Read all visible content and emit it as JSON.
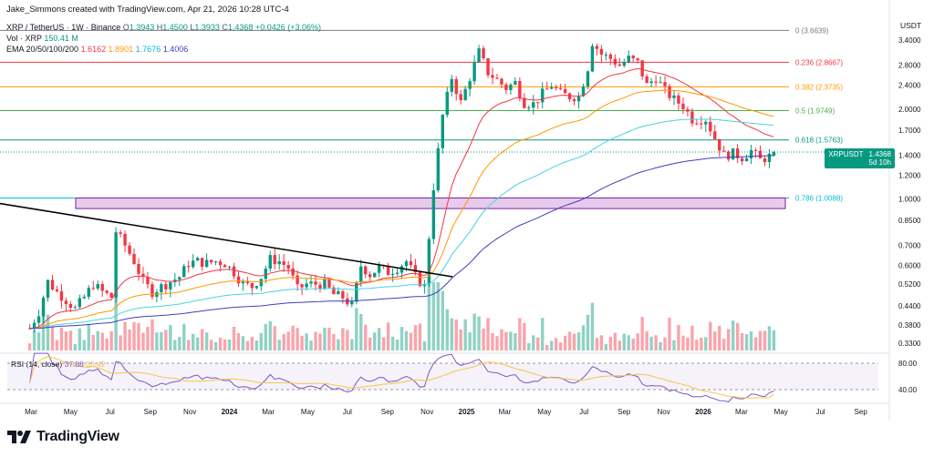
{
  "header": {
    "credit": "Jake_Simmons created with TradingView.com, Apr 21, 2026 10:28 UTC-4",
    "symbol_line": "XRP / TetherUS · 1W · Binance",
    "ohlc": {
      "o_label": "O",
      "o": "1.3943",
      "h_label": "H",
      "h": "1.4500",
      "l_label": "L",
      "l": "1.3933",
      "c_label": "C",
      "c": "1.4368",
      "change": "+0.0426 (+3.06%)"
    },
    "vol_label": "Vol · XRP",
    "vol_value": "150.41 M",
    "ema_label": "EMA 20/50/100/200",
    "ema_values": [
      "1.6162",
      "1.8901",
      "1.7676",
      "1.4006"
    ]
  },
  "price_badge": {
    "symbol": "XRPUSDT",
    "price": "1.4368",
    "timer": "5d 10h"
  },
  "rsi_header": {
    "label": "RSI (14, close)",
    "value": "37.88",
    "ma": "33.42"
  },
  "brand": {
    "name": "TradingView"
  },
  "colors": {
    "up": "#089981",
    "down": "#f23645",
    "ema20": "#f23645",
    "ema50": "#ff9800",
    "ema100": "#4dd0e1",
    "ema200": "#3f3fbf",
    "fib_0": "#787b86",
    "fib_236": "#f23645",
    "fib_382": "#ff9800",
    "fib_5": "#4caf50",
    "fib_618": "#089981",
    "fib_786": "#00bcd4",
    "zone_fill": "#e1bee7",
    "zone_stroke": "#7b1fa2",
    "trendline": "#000000",
    "rsi_line": "#7e57c2",
    "rsi_ma": "#f7c548"
  },
  "chart_data": {
    "type": "candlestick",
    "symbol": "XRP / TetherUS",
    "interval": "1W",
    "exchange": "Binance",
    "y_axis": {
      "unit": "USDT",
      "scale": "log",
      "ticks": [
        "3.4000",
        "2.8000",
        "2.4000",
        "2.0000",
        "1.7000",
        "1.4000",
        "1.2000",
        "1.0000",
        "0.8500",
        "0.7000",
        "0.6000",
        "0.5200",
        "0.4400",
        "0.3800",
        "0.3300"
      ],
      "range": [
        0.3,
        3.9
      ]
    },
    "x_axis": {
      "ticks": [
        "Mar",
        "May",
        "Jul",
        "Sep",
        "Nov",
        "2024",
        "Mar",
        "May",
        "Jul",
        "Sep",
        "Nov",
        "2025",
        "Mar",
        "May",
        "Jul",
        "Sep",
        "Nov",
        "2026",
        "Mar",
        "May",
        "Jul",
        "Sep"
      ],
      "tick_dates": [
        "2023-03-01",
        "2023-05-01",
        "2023-07-01",
        "2023-09-01",
        "2023-11-01",
        "2024-01-01",
        "2024-03-01",
        "2024-05-01",
        "2024-07-01",
        "2024-09-01",
        "2024-11-01",
        "2025-01-01",
        "2025-03-01",
        "2025-05-01",
        "2025-07-01",
        "2025-09-01",
        "2025-11-01",
        "2026-01-01",
        "2026-03-01",
        "2026-05-01",
        "2026-07-01",
        "2026-09-01"
      ]
    },
    "closes": [
      [
        "2023-02-27",
        0.37
      ],
      [
        "2023-03-13",
        0.42
      ],
      [
        "2023-03-27",
        0.53
      ],
      [
        "2023-04-10",
        0.49
      ],
      [
        "2023-04-24",
        0.46
      ],
      [
        "2023-05-08",
        0.43
      ],
      [
        "2023-05-22",
        0.47
      ],
      [
        "2023-06-05",
        0.52
      ],
      [
        "2023-06-19",
        0.49
      ],
      [
        "2023-07-03",
        0.47
      ],
      [
        "2023-07-10",
        0.78
      ],
      [
        "2023-07-24",
        0.7
      ],
      [
        "2023-08-07",
        0.62
      ],
      [
        "2023-08-21",
        0.53
      ],
      [
        "2023-09-04",
        0.49
      ],
      [
        "2023-09-18",
        0.51
      ],
      [
        "2023-10-02",
        0.53
      ],
      [
        "2023-10-16",
        0.55
      ],
      [
        "2023-10-30",
        0.61
      ],
      [
        "2023-11-13",
        0.62
      ],
      [
        "2023-11-27",
        0.61
      ],
      [
        "2023-12-11",
        0.62
      ],
      [
        "2023-12-25",
        0.61
      ],
      [
        "2024-01-08",
        0.57
      ],
      [
        "2024-01-22",
        0.52
      ],
      [
        "2024-02-05",
        0.51
      ],
      [
        "2024-02-19",
        0.55
      ],
      [
        "2024-03-04",
        0.63
      ],
      [
        "2024-03-18",
        0.62
      ],
      [
        "2024-04-01",
        0.59
      ],
      [
        "2024-04-15",
        0.5
      ],
      [
        "2024-04-29",
        0.52
      ],
      [
        "2024-05-13",
        0.52
      ],
      [
        "2024-05-27",
        0.52
      ],
      [
        "2024-06-10",
        0.48
      ],
      [
        "2024-06-24",
        0.47
      ],
      [
        "2024-07-08",
        0.44
      ],
      [
        "2024-07-22",
        0.6
      ],
      [
        "2024-08-05",
        0.56
      ],
      [
        "2024-08-19",
        0.59
      ],
      [
        "2024-09-02",
        0.57
      ],
      [
        "2024-09-16",
        0.59
      ],
      [
        "2024-09-30",
        0.62
      ],
      [
        "2024-10-14",
        0.55
      ],
      [
        "2024-10-28",
        0.51
      ],
      [
        "2024-11-11",
        1.1
      ],
      [
        "2024-11-25",
        1.9
      ],
      [
        "2024-12-09",
        2.55
      ],
      [
        "2024-12-23",
        2.1
      ],
      [
        "2025-01-06",
        2.55
      ],
      [
        "2025-01-20",
        3.1
      ],
      [
        "2025-02-03",
        2.65
      ],
      [
        "2025-02-17",
        2.5
      ],
      [
        "2025-03-03",
        2.35
      ],
      [
        "2025-03-17",
        2.45
      ],
      [
        "2025-03-31",
        2.1
      ],
      [
        "2025-04-14",
        2.08
      ],
      [
        "2025-04-28",
        2.25
      ],
      [
        "2025-05-12",
        2.4
      ],
      [
        "2025-05-26",
        2.25
      ],
      [
        "2025-06-09",
        2.2
      ],
      [
        "2025-06-23",
        2.2
      ],
      [
        "2025-07-07",
        2.75
      ],
      [
        "2025-07-14",
        3.35
      ],
      [
        "2025-07-28",
        3.05
      ],
      [
        "2025-08-11",
        2.95
      ],
      [
        "2025-08-25",
        2.8
      ],
      [
        "2025-09-08",
        2.95
      ],
      [
        "2025-09-22",
        2.85
      ],
      [
        "2025-10-06",
        2.4
      ],
      [
        "2025-10-20",
        2.55
      ],
      [
        "2025-11-03",
        2.3
      ],
      [
        "2025-11-17",
        2.15
      ],
      [
        "2025-12-01",
        2.05
      ],
      [
        "2025-12-15",
        1.85
      ],
      [
        "2026-01-05",
        1.85
      ],
      [
        "2026-01-19",
        1.6
      ],
      [
        "2026-02-02",
        1.4
      ],
      [
        "2026-02-16",
        1.42
      ],
      [
        "2026-03-02",
        1.38
      ],
      [
        "2026-03-16",
        1.45
      ],
      [
        "2026-03-30",
        1.35
      ],
      [
        "2026-04-13",
        1.39
      ],
      [
        "2026-04-20",
        1.4368
      ]
    ],
    "ema_series": [
      {
        "name": "EMA 20",
        "last": 1.6162
      },
      {
        "name": "EMA 50",
        "last": 1.8901
      },
      {
        "name": "EMA 100",
        "last": 1.7676
      },
      {
        "name": "EMA 200",
        "last": 1.4006
      }
    ],
    "fibonacci": [
      {
        "level": "0",
        "price": 3.6639,
        "label": "0 (3.6639)"
      },
      {
        "level": "0.236",
        "price": 2.8667,
        "label": "0.236 (2.8667)"
      },
      {
        "level": "0.382",
        "price": 2.3735,
        "label": "0.382 (2.3735)"
      },
      {
        "level": "0.5",
        "price": 1.9749,
        "label": "0.5 (1.9749)"
      },
      {
        "level": "0.618",
        "price": 1.5763,
        "label": "0.618 (1.5763)"
      },
      {
        "level": "0.786",
        "price": 1.0088,
        "label": "0.786 (1.0088)"
      }
    ],
    "support_zone": {
      "low": 0.93,
      "high": 1.0088
    },
    "trendline": {
      "from": [
        "2022-12-01",
        1.0
      ],
      "to": [
        "2024-11-01",
        0.57
      ]
    },
    "last_price": 1.4368,
    "rsi": {
      "period": 14,
      "value": 37.88,
      "ma": 33.42,
      "levels": [
        80,
        40
      ]
    }
  }
}
